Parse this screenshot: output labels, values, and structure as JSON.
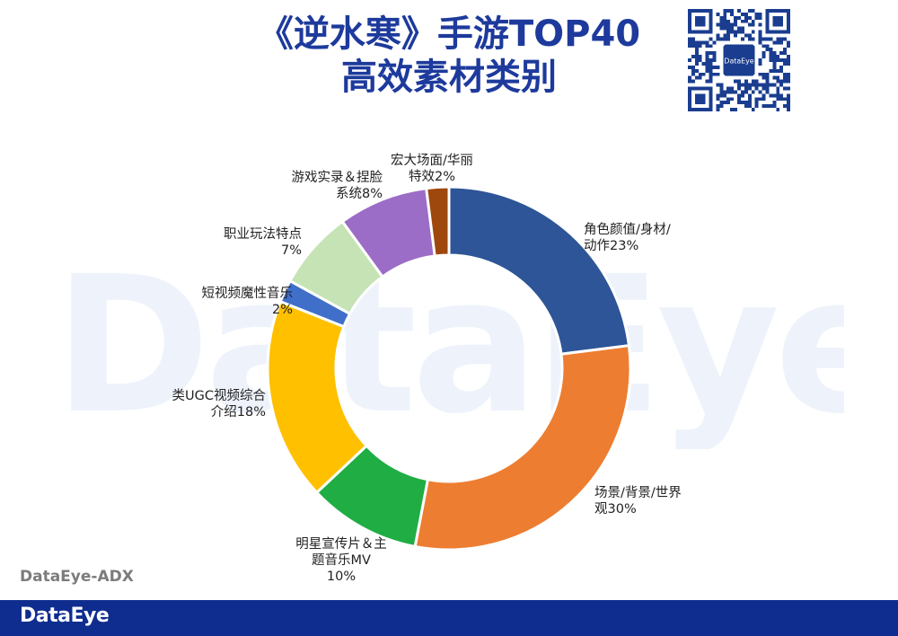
{
  "watermark": "DataEye",
  "title": {
    "line1": "《逆水寒》手游TOP40",
    "line2": "高效素材类别"
  },
  "qr_code": {
    "center_label": "DataEye"
  },
  "chart_data": {
    "type": "pie",
    "donut": true,
    "title": "《逆水寒》手游TOP40 高效素材类别",
    "slices": [
      {
        "line1": "角色颜值/身材/",
        "line2": "动作23%",
        "value": 23,
        "color": "#2d5597"
      },
      {
        "line1": "场景/背景/世界",
        "line2": "观30%",
        "value": 30,
        "color": "#ed7d31"
      },
      {
        "line1": "明星宣传片＆主",
        "line2": "题音乐MV",
        "line3": "10%",
        "value": 10,
        "color": "#1fad44"
      },
      {
        "line1": "类UGC视频综合",
        "line2": "介绍18%",
        "value": 18,
        "color": "#ffc000"
      },
      {
        "line1": "短视频魔性音乐",
        "line2": "2%",
        "value": 2,
        "color": "#3f6fc9"
      },
      {
        "line1": "职业玩法特点",
        "line2": "7%",
        "value": 7,
        "color": "#c6e3b5"
      },
      {
        "line1": "游戏实录＆捏脸",
        "line2": "系统8%",
        "value": 8,
        "color": "#9b6dc6"
      },
      {
        "line1": "宏大场面/华丽",
        "line2": "特效2%",
        "value": 2,
        "color": "#9e480e"
      }
    ]
  },
  "footer": {
    "source": "DataEye-ADX",
    "logo": "DataEye",
    "bar_color": "#0f2d8f"
  }
}
